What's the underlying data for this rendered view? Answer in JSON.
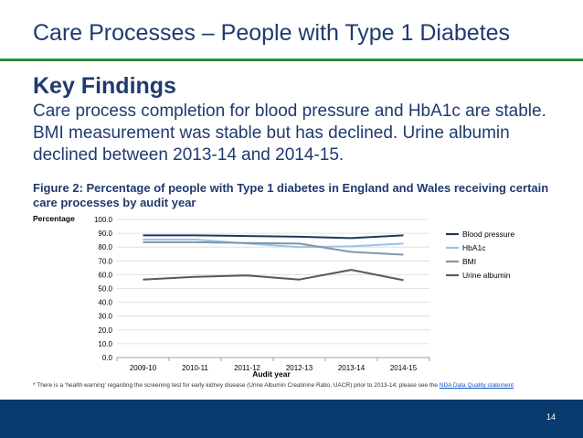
{
  "slide": {
    "title": "Care Processes – People with Type 1 Diabetes",
    "heading": "Key Findings",
    "body": "Care process completion for blood pressure and HbA1c are stable. BMI measurement was stable but has declined. Urine albumin declined between 2013-14 and 2014-15.",
    "figure_caption": "Figure 2: Percentage of people with Type 1 diabetes in England and Wales receiving certain care processes by audit year",
    "footnote_text": "* There is a ‘health warning’ regarding the screening test for early kidney disease (Urine Albumin Creatinine Ratio, UACR) prior to 2013-14; please see the ",
    "footnote_link": "NDA Data Quality statement",
    "page_number": "14"
  },
  "colors": {
    "title": "#1f3a6e",
    "rule": "#2e8b3e",
    "footer": "#083a6e"
  },
  "chart_data": {
    "type": "line",
    "title": "",
    "xlabel": "Audit year",
    "ylabel": "Percentage",
    "categories": [
      "2009-10",
      "2010-11",
      "2011-12",
      "2012-13",
      "2013-14",
      "2014-15"
    ],
    "ylim": [
      0,
      100
    ],
    "yticks": [
      "0.0",
      "10.0",
      "20.0",
      "30.0",
      "40.0",
      "50.0",
      "60.0",
      "70.0",
      "80.0",
      "90.0",
      "100.0"
    ],
    "legend_position": "right",
    "series": [
      {
        "name": "Blood pressure",
        "color": "#1f3864",
        "values": [
          88.5,
          88.5,
          88.0,
          87.5,
          86.5,
          88.5
        ]
      },
      {
        "name": "HbA1c",
        "color": "#9dc3e6",
        "values": [
          85.5,
          85.5,
          82.5,
          80.0,
          80.5,
          82.5
        ]
      },
      {
        "name": "BMI",
        "color": "#7f96a8",
        "values": [
          83.5,
          83.5,
          83.0,
          82.5,
          76.5,
          74.5
        ]
      },
      {
        "name": "Urine albumin",
        "color": "#595959",
        "values": [
          56.5,
          58.5,
          59.5,
          56.5,
          63.5,
          56.0
        ]
      }
    ]
  }
}
